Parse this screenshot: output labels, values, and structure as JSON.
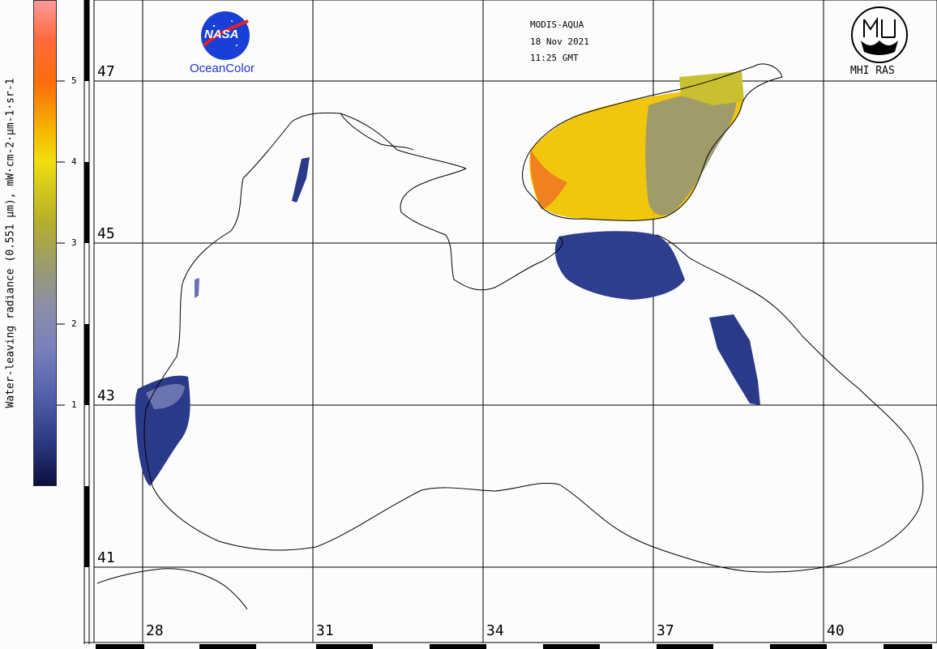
{
  "header": {
    "sensor": "MODIS-AQUA",
    "date": "18 Nov 2021",
    "time": "11:25 GMT"
  },
  "logos": {
    "nasa_text": "NASA",
    "oceancolor_text": "OceanColor",
    "mhi_text": "MHI RAS"
  },
  "colorbar": {
    "title": "Water-leaving radiance (0.551 µm), mW·cm-2·µm-1·sr-1",
    "ticks": [
      "5",
      "4",
      "3",
      "2",
      "1"
    ]
  },
  "map": {
    "lat_labels": [
      "47",
      "45",
      "43",
      "41"
    ],
    "lon_labels": [
      "28",
      "31",
      "34",
      "37",
      "40"
    ]
  },
  "colors": {
    "background": "#fcfcfc",
    "grid": "#000000",
    "coast": "#000000",
    "low_radiance": "#243a8c",
    "mid_radiance": "#9a9a70",
    "high_radiance": "#f0c000"
  }
}
